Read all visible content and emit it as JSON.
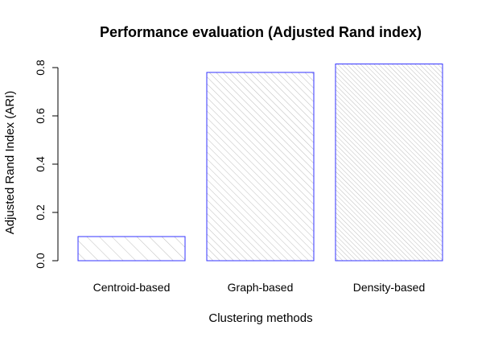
{
  "chart_data": {
    "type": "bar",
    "title": "Performance evaluation (Adjusted Rand index)",
    "xlabel": "Clustering methods",
    "ylabel": "Adjusted Rand Index (ARI)",
    "categories": [
      "Centroid-based",
      "Graph-based",
      "Density-based"
    ],
    "values": [
      0.1,
      0.78,
      0.815
    ],
    "ylim": [
      0,
      0.8
    ],
    "yticks": [
      "0.0",
      "0.2",
      "0.4",
      "0.6",
      "0.8"
    ],
    "grid": false,
    "legend": "none",
    "bar_border_color": "#3333ff",
    "bar_hatch_color": "#bdbdbd",
    "hatch_densities": [
      10,
      20,
      30
    ]
  }
}
